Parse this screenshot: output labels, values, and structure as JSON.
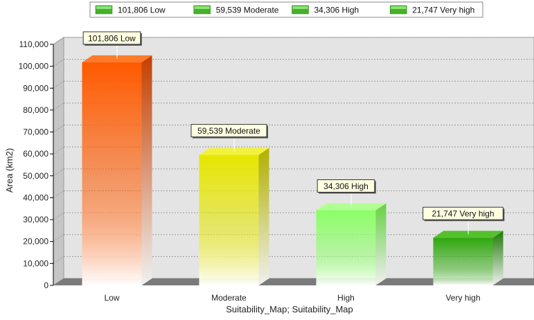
{
  "chart_data": {
    "type": "bar",
    "categories": [
      "Low",
      "Moderate",
      "High",
      "Very high"
    ],
    "values": [
      101806,
      59539,
      34306,
      21747
    ],
    "data_labels": [
      "101,806 Low",
      "59,539 Moderate",
      "34,306 High",
      "21,747 Very high"
    ],
    "legend": [
      "101,806 Low",
      "59,539 Moderate",
      "34,306 High",
      "21,747 Very high"
    ],
    "title": "",
    "xlabel": "Suitability_Map; Suitability_Map",
    "ylabel": "Area (km2)",
    "ylim": [
      0,
      110000
    ],
    "yticks": [
      0,
      10000,
      20000,
      30000,
      40000,
      50000,
      60000,
      70000,
      80000,
      90000,
      100000,
      110000
    ],
    "ytick_labels": [
      "0",
      "10,000",
      "20,000",
      "30,000",
      "40,000",
      "50,000",
      "60,000",
      "70,000",
      "80,000",
      "90,000",
      "100,000",
      "110,000"
    ],
    "grid": true,
    "legend_position": "top",
    "style": "3d-gradient-bars",
    "colors": {
      "bars": [
        "#ff5a00",
        "#e6e600",
        "#8cff66",
        "#2ea80c"
      ],
      "bar_tops": [
        "#ff7a2a",
        "#f2f23a",
        "#b2ff94",
        "#55c02e"
      ],
      "bar_sides": [
        "#c43f00",
        "#b0b000",
        "#66d045",
        "#1e7a06"
      ],
      "plot_background": "#e4e4e4",
      "plot_wall_side": "#c6c6c6",
      "floor": "#7a7a7a",
      "gridline": "#9a9a9a",
      "data_label_background": "#ffffe1",
      "legend_swatch": "#44b22a"
    }
  }
}
